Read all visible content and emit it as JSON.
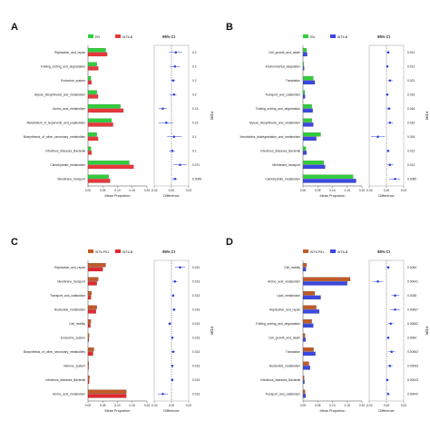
{
  "colors": {
    "green": "#2fcf3a",
    "red_ab": "#e8383a",
    "red_c": "#e02a2f",
    "orange": "#c05a28",
    "blue": "#3b48e0",
    "ci_point": "#3242d8"
  },
  "chart_data": [
    {
      "type": "bar",
      "label": "A",
      "legend": [
        "EN",
        "WT6-B"
      ],
      "ci_title": "95% CI",
      "fdr_label": "FDR",
      "xlabel_left": "Mean Proportion",
      "xlabel_right": "Difference",
      "xticks_left": [
        "0.00",
        "0.05",
        "0.10",
        "0.15",
        "0.20"
      ],
      "xticks_right": [
        "-0.02",
        "0.00",
        "0.02"
      ],
      "xlim_left": [
        0,
        0.2
      ],
      "xlim_right": [
        -0.02,
        0.02
      ],
      "categories": [
        "Replication_and_repair",
        "Folding_sorting_and_degradation",
        "Endocrine_system",
        "Glycan_biosynthesis_and_metabolism",
        "Amino_acid_metabolism",
        "Metabolism_of_terpenoids_and_polyketides",
        "Biosynthesis_of_other_secondary_metabolites",
        "Infectious_diseases_Bacterial",
        "Carbohydrate_metabolism",
        "Membrane_transport"
      ],
      "series": [
        {
          "name": "EN",
          "values": [
            0.06,
            0.03,
            0.01,
            0.03,
            0.11,
            0.08,
            0.03,
            0.01,
            0.14,
            0.07
          ]
        },
        {
          "name": "WT6-B",
          "values": [
            0.065,
            0.035,
            0.012,
            0.034,
            0.12,
            0.085,
            0.034,
            0.012,
            0.155,
            0.075
          ]
        }
      ],
      "diff": [
        0.005,
        0.004,
        0.002,
        0.003,
        -0.01,
        -0.006,
        0.003,
        0.001,
        0.01,
        0.004
      ],
      "ci_low": [
        -0.003,
        -0.002,
        -0.001,
        -0.002,
        -0.015,
        -0.015,
        -0.005,
        -0.003,
        0.002,
        0.001
      ],
      "ci_high": [
        0.012,
        0.01,
        0.004,
        0.006,
        -0.005,
        0.002,
        0.012,
        0.004,
        0.018,
        0.007
      ],
      "fdr": [
        "0.2",
        "0.2",
        "0.2",
        "0.2",
        "0.15",
        "0.15",
        "0.1",
        "0.1",
        "0.071",
        "0.0045"
      ]
    },
    {
      "type": "bar",
      "label": "B",
      "legend": [
        "EN",
        "WT6-B"
      ],
      "ci_title": "95% CI",
      "fdr_label": "FDR",
      "xlabel_left": "Mean Proportion",
      "xlabel_right": "Difference",
      "xticks_left": [
        "0.00",
        "0.05",
        "0.10",
        "0.15",
        "0.20"
      ],
      "xticks_right": [
        "-0.02",
        "0.00",
        "0.02"
      ],
      "xlim_left": [
        0,
        0.2
      ],
      "xlim_right": [
        -0.02,
        0.02
      ],
      "categories": [
        "Cell_growth_and_death",
        "Environmental_adaptation",
        "Translation",
        "Transport_and_catabolism",
        "Folding_sorting_and_degradation",
        "Glycan_biosynthesis_and_metabolism",
        "Xenobiotics_biodegradation_and_metabolism",
        "Infectious_diseases_Bacterial",
        "Membrane_transport",
        "Carbohydrate_metabolism"
      ],
      "series": [
        {
          "name": "EN",
          "values": [
            0.012,
            0.003,
            0.035,
            0.006,
            0.03,
            0.03,
            0.06,
            0.01,
            0.07,
            0.17
          ]
        },
        {
          "name": "WT6-B",
          "values": [
            0.014,
            0.004,
            0.04,
            0.007,
            0.033,
            0.035,
            0.045,
            0.012,
            0.075,
            0.18
          ]
        }
      ],
      "diff": [
        0.002,
        0.001,
        0.004,
        0.001,
        0.003,
        0.004,
        -0.01,
        0.002,
        0.004,
        0.01
      ],
      "ci_low": [
        0.0,
        0.0,
        0.002,
        0.0,
        0.0,
        0.001,
        -0.018,
        0.0,
        0.001,
        0.003
      ],
      "ci_high": [
        0.004,
        0.002,
        0.007,
        0.002,
        0.005,
        0.008,
        -0.002,
        0.003,
        0.008,
        0.016
      ],
      "fdr": [
        "0.021",
        "0.021",
        "0.021",
        "0.016",
        "0.016",
        "0.016",
        "0.016",
        "0.012",
        "0.012",
        "0.0055"
      ]
    },
    {
      "type": "bar",
      "label": "C",
      "legend": [
        "WT6-P51",
        "WT6-B"
      ],
      "ci_title": "95% CI",
      "fdr_label": "FDR",
      "xlabel_left": "Mean Proportion",
      "xlabel_right": "Difference",
      "xticks_left": [
        "0.00",
        "0.05",
        "0.10",
        "0.15",
        "0.20"
      ],
      "xticks_right": [
        "-0.02",
        "0.00",
        "0.02"
      ],
      "xlim_left": [
        0,
        0.2
      ],
      "xlim_right": [
        -0.02,
        0.02
      ],
      "categories": [
        "Replication_and_repair",
        "Membrane_transport",
        "Transport_and_catabolism",
        "Nucleotide_metabolism",
        "Cell_motility",
        "Endocrine_system",
        "Biosynthesis_of_other_secondary_metabolites",
        "Immune_system",
        "Infectious_diseases_Bacterial",
        "Amino_acid_metabolism"
      ],
      "series": [
        {
          "name": "WT6-P51",
          "values": [
            0.06,
            0.035,
            0.012,
            0.03,
            0.01,
            0.004,
            0.02,
            0.003,
            0.005,
            0.13
          ]
        },
        {
          "name": "WT6-B",
          "values": [
            0.05,
            0.03,
            0.01,
            0.027,
            0.008,
            0.003,
            0.017,
            0.002,
            0.004,
            0.13
          ]
        }
      ],
      "diff": [
        0.01,
        0.004,
        0.002,
        0.003,
        -0.002,
        0.001,
        0.002,
        0.001,
        0.001,
        -0.01
      ],
      "ci_low": [
        0.004,
        0.001,
        0.001,
        0.001,
        -0.004,
        0.0,
        0.0,
        0.0,
        0.0,
        -0.016
      ],
      "ci_high": [
        0.016,
        0.007,
        0.003,
        0.005,
        0.0,
        0.002,
        0.004,
        0.002,
        0.002,
        -0.004
      ],
      "fdr": [
        "0.021",
        "0.013",
        "0.013",
        "0.013",
        "0.013",
        "0.013",
        "0.013",
        "0.013",
        "0.013",
        "0.013"
      ]
    },
    {
      "type": "bar",
      "label": "D",
      "legend": [
        "WT6-P51",
        "WT6-B"
      ],
      "ci_title": "95% CI",
      "fdr_label": "FDR",
      "xlabel_left": "Mean Proportion",
      "xlabel_right": "Difference",
      "xticks_left": [
        "0.00",
        "0.05",
        "0.10",
        "0.15",
        "0.20"
      ],
      "xticks_right": [
        "-0.02",
        "0.00",
        "0.02"
      ],
      "xlim_left": [
        0,
        0.2
      ],
      "xlim_right": [
        -0.02,
        0.02
      ],
      "categories": [
        "Cell_motility",
        "Amino_acid_metabolism",
        "Lipid_metabolism",
        "Replication_and_repair",
        "Folding_sorting_and_degradation",
        "Cell_growth_and_death",
        "Translation",
        "Nucleotide_metabolism",
        "Infectious_diseases_Bacterial",
        "Transport_and_catabolism"
      ],
      "series": [
        {
          "name": "WT6-P51",
          "values": [
            0.012,
            0.16,
            0.04,
            0.045,
            0.03,
            0.007,
            0.036,
            0.02,
            0.004,
            0.007
          ]
        },
        {
          "name": "WT6-B",
          "values": [
            0.01,
            0.15,
            0.06,
            0.055,
            0.035,
            0.009,
            0.042,
            0.024,
            0.005,
            0.009
          ]
        }
      ],
      "diff": [
        0.002,
        -0.01,
        0.01,
        0.01,
        0.005,
        0.002,
        0.006,
        0.004,
        0.001,
        0.002
      ],
      "ci_low": [
        0.0,
        -0.016,
        0.006,
        0.004,
        0.002,
        0.0,
        0.002,
        0.001,
        0.0,
        0.001
      ],
      "ci_high": [
        0.004,
        -0.004,
        0.015,
        0.016,
        0.008,
        0.004,
        0.01,
        0.007,
        0.002,
        0.003
      ],
      "fdr": [
        "0.0064",
        "0.00041",
        "0.0038",
        "0.00067",
        "0.00062",
        "0.0064",
        "0.00063",
        "0.00063",
        "0.00043",
        "0.00042"
      ]
    }
  ]
}
